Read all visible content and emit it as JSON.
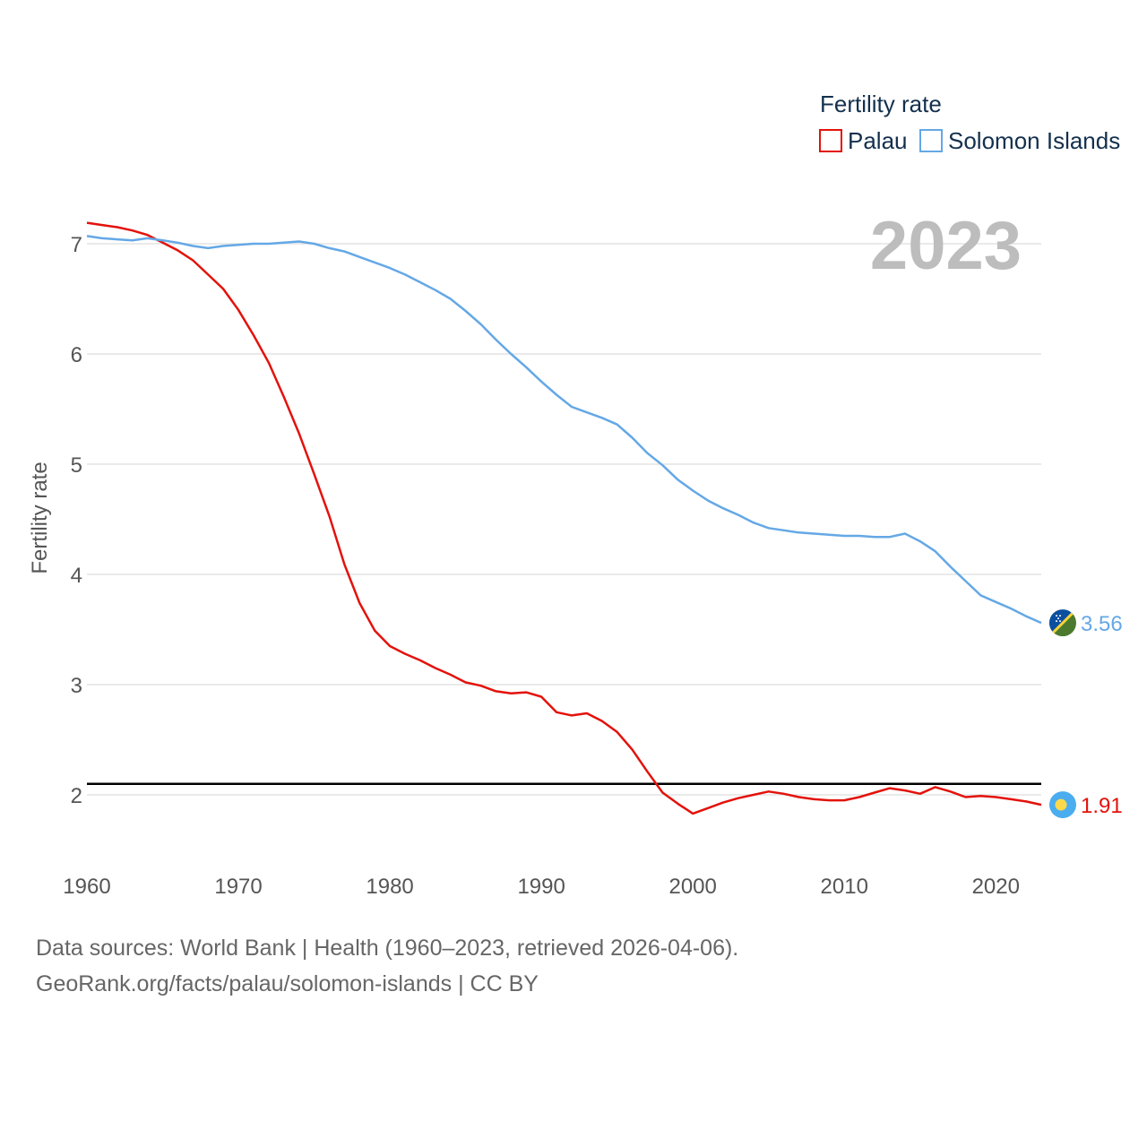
{
  "chart_data": {
    "type": "line",
    "title": "Fertility rate",
    "xlabel": "",
    "ylabel": "Fertility rate",
    "xlim": [
      1960,
      2023
    ],
    "ylim": [
      1.4,
      7.5
    ],
    "x_ticks": [
      1960,
      1970,
      1980,
      1990,
      2000,
      2010,
      2020
    ],
    "y_ticks": [
      2,
      3,
      4,
      5,
      6,
      7
    ],
    "current_year": "2023",
    "reference_line": {
      "y": 2.1
    },
    "x": [
      1960,
      1961,
      1962,
      1963,
      1964,
      1965,
      1966,
      1967,
      1968,
      1969,
      1970,
      1971,
      1972,
      1973,
      1974,
      1975,
      1976,
      1977,
      1978,
      1979,
      1980,
      1981,
      1982,
      1983,
      1984,
      1985,
      1986,
      1987,
      1988,
      1989,
      1990,
      1991,
      1992,
      1993,
      1994,
      1995,
      1996,
      1997,
      1998,
      1999,
      2000,
      2001,
      2002,
      2003,
      2004,
      2005,
      2006,
      2007,
      2008,
      2009,
      2010,
      2011,
      2012,
      2013,
      2014,
      2015,
      2016,
      2017,
      2018,
      2019,
      2020,
      2021,
      2022,
      2023
    ],
    "series": [
      {
        "name": "Palau",
        "color": "#e3120b",
        "end_label": "1.91",
        "flag": "palau-flag-icon",
        "values": [
          7.19,
          7.17,
          7.15,
          7.12,
          7.08,
          7.01,
          6.94,
          6.85,
          6.72,
          6.59,
          6.4,
          6.17,
          5.92,
          5.61,
          5.28,
          4.91,
          4.53,
          4.09,
          3.74,
          3.49,
          3.35,
          3.28,
          3.22,
          3.15,
          3.09,
          3.02,
          2.99,
          2.94,
          2.92,
          2.93,
          2.89,
          2.75,
          2.72,
          2.74,
          2.67,
          2.57,
          2.41,
          2.21,
          2.02,
          1.92,
          1.83,
          1.88,
          1.93,
          1.97,
          2.0,
          2.03,
          2.01,
          1.98,
          1.96,
          1.95,
          1.95,
          1.98,
          2.02,
          2.06,
          2.04,
          2.01,
          2.07,
          2.03,
          1.98,
          1.99,
          1.98,
          1.96,
          1.94,
          1.91
        ]
      },
      {
        "name": "Solomon Islands",
        "color": "#64a8e6",
        "end_label": "3.56",
        "flag": "solomon-islands-flag-icon",
        "values": [
          7.07,
          7.05,
          7.04,
          7.03,
          7.05,
          7.03,
          7.01,
          6.98,
          6.96,
          6.98,
          6.99,
          7.0,
          7.0,
          7.01,
          7.02,
          7.0,
          6.96,
          6.93,
          6.88,
          6.83,
          6.78,
          6.72,
          6.65,
          6.58,
          6.5,
          6.39,
          6.27,
          6.13,
          6.0,
          5.88,
          5.75,
          5.63,
          5.52,
          5.47,
          5.42,
          5.36,
          5.24,
          5.1,
          4.99,
          4.86,
          4.76,
          4.67,
          4.6,
          4.54,
          4.47,
          4.42,
          4.4,
          4.38,
          4.37,
          4.36,
          4.35,
          4.35,
          4.34,
          4.34,
          4.37,
          4.3,
          4.21,
          4.07,
          3.94,
          3.81,
          3.75,
          3.69,
          3.62,
          3.56
        ]
      }
    ]
  },
  "footer": {
    "sources": "Data sources: World Bank | Health (1960–2023, retrieved 2026-04-06).",
    "credit": "GeoRank.org/facts/palau/solomon-islands | CC BY"
  }
}
